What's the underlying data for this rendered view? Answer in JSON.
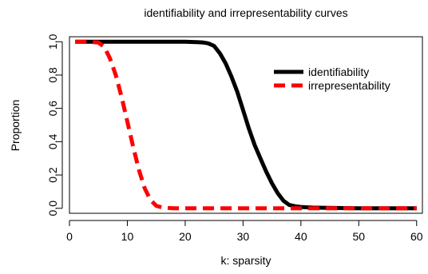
{
  "chart_data": {
    "type": "line",
    "title": "identifiability and irrepresentability curves",
    "xlabel": "k: sparsity",
    "ylabel": "Proportion",
    "xlim": [
      0,
      61
    ],
    "ylim": [
      -0.03,
      1.03
    ],
    "xticks": [
      0,
      10,
      20,
      30,
      40,
      50,
      60
    ],
    "yticks": [
      0.0,
      0.2,
      0.4,
      0.6,
      0.8,
      1.0
    ],
    "xtick_labels": [
      "0",
      "10",
      "20",
      "30",
      "40",
      "50",
      "60"
    ],
    "ytick_labels": [
      "0.0",
      "0.2",
      "0.4",
      "0.6",
      "0.8",
      "1.0"
    ],
    "grid": false,
    "legend_position": "top-right",
    "series": [
      {
        "name": "identifiability",
        "color": "#000000",
        "style": "solid",
        "x": [
          1,
          5,
          10,
          15,
          20,
          22,
          23,
          24,
          25,
          26,
          27,
          28,
          29,
          30,
          31,
          32,
          33,
          34,
          35,
          36,
          37,
          38,
          39,
          40,
          42,
          45,
          50,
          55,
          60
        ],
        "y": [
          1.0,
          1.0,
          1.0,
          1.0,
          1.0,
          0.998,
          0.996,
          0.99,
          0.975,
          0.93,
          0.87,
          0.79,
          0.7,
          0.59,
          0.48,
          0.38,
          0.3,
          0.22,
          0.15,
          0.09,
          0.045,
          0.02,
          0.012,
          0.008,
          0.004,
          0.002,
          0.0,
          0.0,
          0.0
        ]
      },
      {
        "name": "irrepresentability",
        "color": "#ff0000",
        "style": "dashed",
        "x": [
          1,
          3,
          5,
          6,
          7,
          8,
          9,
          10,
          11,
          12,
          13,
          14,
          15,
          16,
          17,
          18,
          20,
          25,
          30,
          40,
          50,
          60
        ],
        "y": [
          1.0,
          1.0,
          0.995,
          0.97,
          0.9,
          0.8,
          0.67,
          0.52,
          0.37,
          0.23,
          0.12,
          0.05,
          0.015,
          0.005,
          0.002,
          0.0,
          0.0,
          0.0,
          0.0,
          0.0,
          0.0,
          0.0
        ]
      }
    ]
  }
}
